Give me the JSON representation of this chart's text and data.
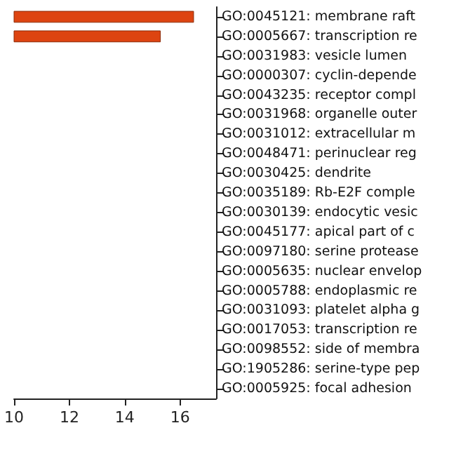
{
  "chart_data": {
    "type": "bar",
    "orientation": "horizontal",
    "categories": [
      "GO:0045121: membrane raft",
      "GO:0005667: transcription re",
      "GO:0031983: vesicle lumen",
      "GO:0000307: cyclin-depende",
      "GO:0043235: receptor compl",
      "GO:0031968: organelle outer",
      "GO:0031012: extracellular m",
      "GO:0048471: perinuclear reg",
      "GO:0030425: dendrite",
      "GO:0035189: Rb-E2F comple",
      "GO:0030139: endocytic vesic",
      "GO:0045177: apical part of c",
      "GO:0097180: serine protease",
      "GO:0005635: nuclear envelop",
      "GO:0005788: endoplasmic re",
      "GO:0031093: platelet alpha g",
      "GO:0017053: transcription re",
      "GO:0098552: side of membra",
      "GO:1905286: serine-type pep",
      "GO:0005925: focal adhesion"
    ],
    "values": [
      16.5,
      15.3,
      null,
      null,
      null,
      null,
      null,
      null,
      null,
      null,
      null,
      null,
      null,
      null,
      null,
      null,
      null,
      null,
      null,
      null
    ],
    "color": "#dd4411",
    "xlim": [
      10,
      17.3
    ],
    "xticks": [
      10,
      12,
      14,
      16
    ],
    "grid": false
  }
}
